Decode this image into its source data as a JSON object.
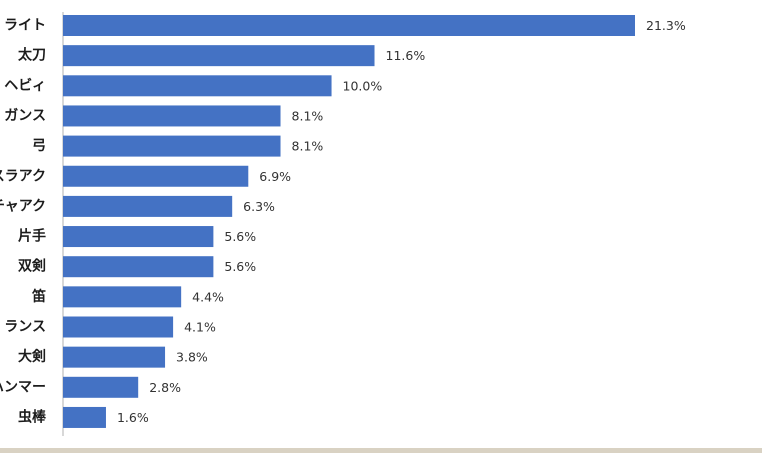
{
  "chart_data": {
    "type": "bar",
    "orientation": "horizontal",
    "categories": [
      "ライト",
      "太刀",
      "ヘビィ",
      "ガンス",
      "弓",
      "スラアク",
      "チャアク",
      "片手",
      "双剣",
      "笛",
      "ランス",
      "大剣",
      "ハンマー",
      "虫棒"
    ],
    "values": [
      21.3,
      11.6,
      10.0,
      8.1,
      8.1,
      6.9,
      6.3,
      5.6,
      5.6,
      4.4,
      4.1,
      3.8,
      2.8,
      1.6
    ],
    "value_labels": [
      "21.3%",
      "11.6%",
      "10.0%",
      "8.1%",
      "8.1%",
      "6.9%",
      "6.3%",
      "5.6%",
      "5.6%",
      "4.4%",
      "4.1%",
      "3.8%",
      "2.8%",
      "1.6%"
    ],
    "xlim": [
      0,
      21.3
    ],
    "title": "",
    "xlabel": "",
    "ylabel": "",
    "grid": false,
    "legend": "none",
    "colors": {
      "bar": "#4472c4",
      "axis": "#b0b0b0"
    }
  }
}
